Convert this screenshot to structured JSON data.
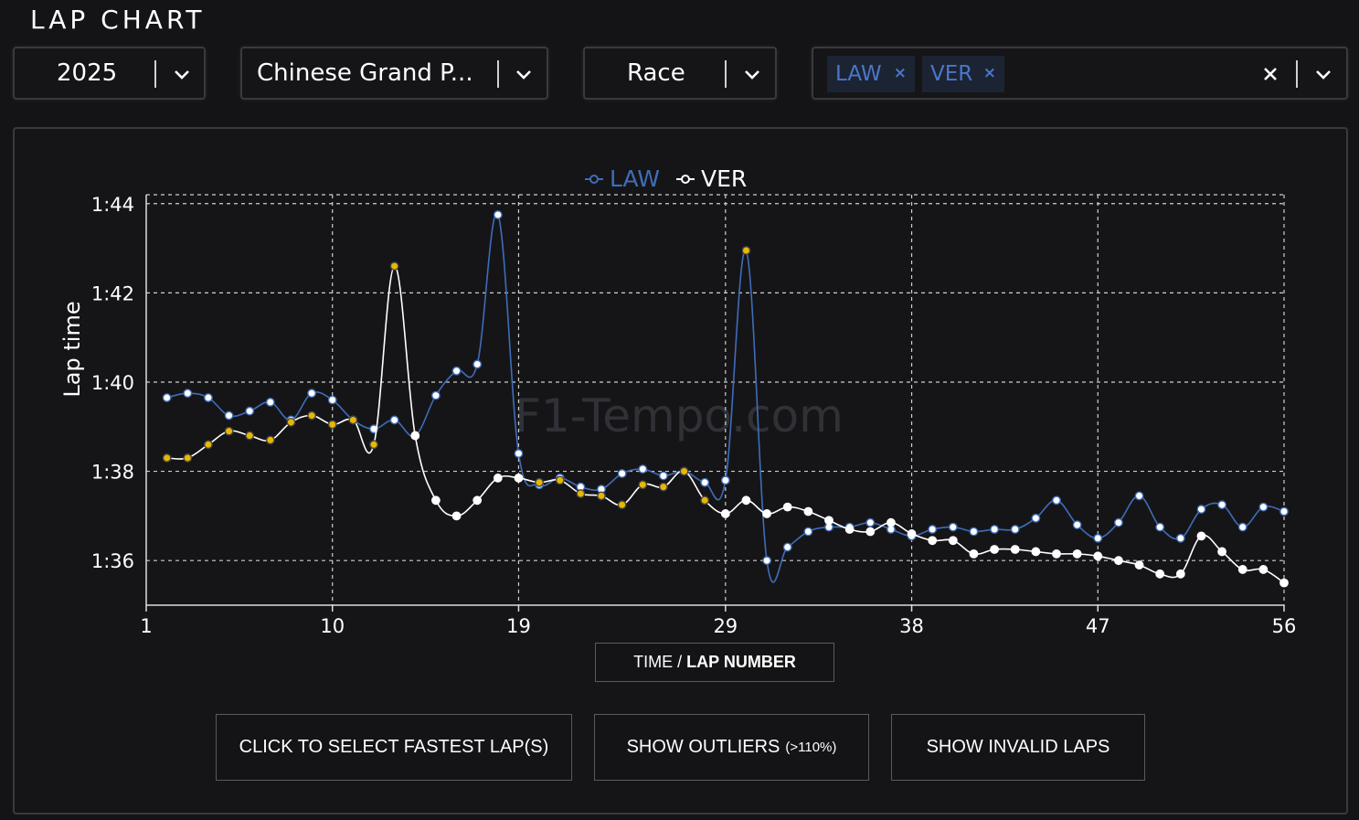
{
  "header": {
    "title": "LAP CHART"
  },
  "filters": {
    "year": "2025",
    "event": "Chinese Grand P...",
    "session": "Race",
    "drivers": [
      {
        "label": "LAW",
        "remove": "×"
      },
      {
        "label": "VER",
        "remove": "×"
      }
    ],
    "clear": "✕"
  },
  "icons": {
    "year": "chevron-down-icon",
    "event": "chevron-down-icon",
    "session": "chevron-down-icon",
    "drivers": "chevron-down-icon",
    "clear": "close-icon"
  },
  "watermark": "F1-Tempo.com",
  "xaxis_button": {
    "prefix": "TIME /",
    "bold": "LAP NUMBER"
  },
  "buttons": {
    "fastest": "CLICK TO SELECT FASTEST LAP(S)",
    "outliers": "SHOW OUTLIERS",
    "outliers_note": "(>110%)",
    "invalid": "SHOW INVALID LAPS"
  },
  "colors": {
    "LAW": "#3f6db8",
    "VER": "#ffffff",
    "highlight_marker": "#e8b800",
    "background": "#141416"
  },
  "chart_data": {
    "type": "line",
    "ylabel": "Lap time",
    "ylim": [
      95,
      104.2
    ],
    "xlim": [
      1,
      56
    ],
    "xticks": [
      1,
      10,
      19,
      29,
      38,
      47,
      56
    ],
    "yticks": [
      96,
      98,
      100,
      102,
      104
    ],
    "ytick_labels": [
      "1:36",
      "1:38",
      "1:40",
      "1:42",
      "1:44"
    ],
    "grid": true,
    "legend_position": "top-center",
    "series": [
      {
        "name": "LAW",
        "x": [
          2,
          3,
          4,
          5,
          6,
          7,
          8,
          9,
          10,
          11,
          12,
          13,
          14,
          15,
          16,
          17,
          18,
          19,
          20,
          21,
          22,
          23,
          24,
          25,
          26,
          27,
          28,
          29,
          30,
          31,
          32,
          33,
          34,
          35,
          36,
          37,
          38,
          39,
          40,
          41,
          42,
          43,
          44,
          45,
          46,
          47,
          48,
          49,
          50,
          51,
          52,
          53,
          54,
          55,
          56
        ],
        "y": [
          99.65,
          99.75,
          99.65,
          99.25,
          99.35,
          99.55,
          99.15,
          99.75,
          99.6,
          99.15,
          98.95,
          99.15,
          98.8,
          99.7,
          100.25,
          100.4,
          103.75,
          98.4,
          97.7,
          97.85,
          97.65,
          97.6,
          97.95,
          98.05,
          97.9,
          98.0,
          97.75,
          97.8,
          102.95,
          96.0,
          96.3,
          96.65,
          96.75,
          96.75,
          96.85,
          96.7,
          96.55,
          96.7,
          96.75,
          96.65,
          96.7,
          96.7,
          96.95,
          97.35,
          96.8,
          96.5,
          96.85,
          97.45,
          96.75,
          96.5,
          97.15,
          97.25,
          96.75,
          97.2,
          97.1
        ],
        "highlighted_x": [
          30
        ]
      },
      {
        "name": "VER",
        "x": [
          2,
          3,
          4,
          5,
          6,
          7,
          8,
          9,
          10,
          11,
          12,
          13,
          14,
          15,
          16,
          17,
          18,
          19,
          20,
          21,
          22,
          23,
          24,
          25,
          26,
          27,
          28,
          29,
          30,
          31,
          32,
          33,
          34,
          35,
          36,
          37,
          38,
          39,
          40,
          41,
          42,
          43,
          44,
          45,
          46,
          47,
          48,
          49,
          50,
          51,
          52,
          53,
          54,
          55,
          56
        ],
        "y": [
          98.3,
          98.3,
          98.6,
          98.9,
          98.8,
          98.7,
          99.1,
          99.25,
          99.05,
          99.15,
          98.6,
          102.6,
          98.8,
          97.35,
          97.0,
          97.35,
          97.85,
          97.85,
          97.75,
          97.8,
          97.5,
          97.45,
          97.25,
          97.7,
          97.65,
          98.0,
          97.35,
          97.05,
          97.35,
          97.05,
          97.2,
          97.1,
          96.9,
          96.7,
          96.65,
          96.85,
          96.6,
          96.45,
          96.45,
          96.15,
          96.25,
          96.25,
          96.2,
          96.15,
          96.15,
          96.1,
          96.0,
          95.9,
          95.7,
          95.7,
          96.55,
          96.2,
          95.8,
          95.8,
          95.5
        ],
        "highlighted_x": [
          2,
          3,
          4,
          5,
          6,
          7,
          8,
          9,
          10,
          11,
          12,
          13,
          20,
          21,
          22,
          23,
          24,
          25,
          26,
          27,
          28
        ]
      }
    ]
  }
}
